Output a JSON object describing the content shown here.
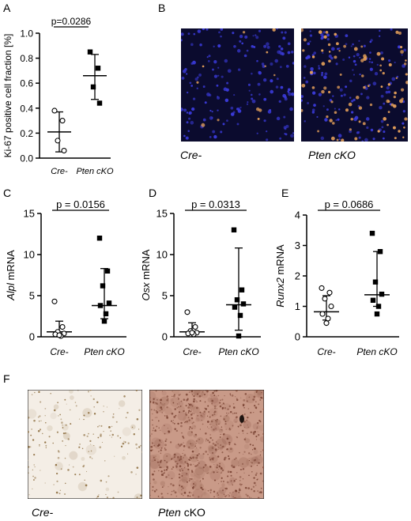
{
  "panels": {
    "A": "A",
    "B": "B",
    "C": "C",
    "D": "D",
    "E": "E",
    "F": "F"
  },
  "micrograph_labels": {
    "b_left": "Cre-",
    "b_right": "Pten cKO",
    "f_left": "Cre-",
    "f_right_italic": "Pten",
    "f_right_plain": " cKO"
  },
  "colors": {
    "fluorescence_bg": "#0b0b2e",
    "nuclei": "#3a3ad8",
    "ki67": "#e8a25a",
    "ihc_cre_bg": "#f4eee6",
    "ihc_pten_bg": "#c99a88"
  },
  "chart_data": [
    {
      "id": "A",
      "type": "scatter",
      "categories": [
        "Cre-",
        "Pten cKO"
      ],
      "ylabel": "Ki-67 positive cell fraction [%]",
      "ylim": [
        0,
        1.0
      ],
      "yticks": [
        "0.0",
        "0.2",
        "0.4",
        "0.6",
        "0.8",
        "1.0"
      ],
      "pvalue": "p=0.0286",
      "groups": [
        {
          "name": "Cre-",
          "marker": "open-circle",
          "points": [
            0.38,
            0.3,
            0.14,
            0.06
          ],
          "center": 0.21,
          "range": [
            0.05,
            0.37
          ]
        },
        {
          "name": "Pten cKO",
          "marker": "filled-square",
          "points": [
            0.85,
            0.72,
            0.57,
            0.44
          ],
          "center": 0.66,
          "range": [
            0.47,
            0.83
          ]
        }
      ]
    },
    {
      "id": "C",
      "type": "scatter",
      "categories": [
        "Cre-",
        "Pten cKO"
      ],
      "ylabel_italic": "Alpl",
      "ylabel_plain": " mRNA",
      "ylim": [
        0,
        15
      ],
      "yticks": [
        "0",
        "5",
        "10",
        "15"
      ],
      "pvalue": "p = 0.0156",
      "groups": [
        {
          "name": "Cre-",
          "marker": "open-circle",
          "points": [
            4.3,
            1.2,
            0.6,
            0.4,
            0.3,
            0.1,
            0.2
          ],
          "center": 0.6,
          "range": [
            0.1,
            1.9
          ]
        },
        {
          "name": "Pten cKO",
          "marker": "filled-square",
          "points": [
            12.0,
            8.0,
            6.2,
            4.1,
            3.8,
            2.8,
            1.9
          ],
          "center": 3.8,
          "range": [
            2.2,
            8.3
          ]
        }
      ]
    },
    {
      "id": "D",
      "type": "scatter",
      "categories": [
        "Cre-",
        "Pten cKO"
      ],
      "ylabel_italic": "Osx",
      "ylabel_plain": " mRNA",
      "ylim": [
        0,
        15
      ],
      "yticks": [
        "0",
        "5",
        "10",
        "15"
      ],
      "pvalue": "p = 0.0313",
      "groups": [
        {
          "name": "Cre-",
          "marker": "open-circle",
          "points": [
            3.0,
            1.2,
            0.7,
            0.5,
            0.4,
            0.3,
            0.5
          ],
          "center": 0.6,
          "range": [
            0.3,
            1.7
          ]
        },
        {
          "name": "Pten cKO",
          "marker": "filled-square",
          "points": [
            13.0,
            5.7,
            4.5,
            4.0,
            3.6,
            2.6,
            0.1
          ],
          "center": 3.9,
          "range": [
            0.8,
            10.8
          ]
        }
      ]
    },
    {
      "id": "E",
      "type": "scatter",
      "categories": [
        "Cre-",
        "Pten cKO"
      ],
      "ylabel_italic": "Runx2",
      "ylabel_plain": " mRNA",
      "ylim": [
        0,
        4
      ],
      "yticks": [
        "0",
        "1",
        "2",
        "3",
        "4"
      ],
      "pvalue": "p = 0.0686",
      "groups": [
        {
          "name": "Cre-",
          "marker": "open-circle",
          "points": [
            1.6,
            1.45,
            1.25,
            1.0,
            0.75,
            0.6,
            0.45
          ],
          "center": 0.82,
          "range": [
            0.55,
            1.35
          ]
        },
        {
          "name": "Pten cKO",
          "marker": "filled-square",
          "points": [
            3.4,
            2.8,
            1.8,
            1.4,
            1.2,
            1.0,
            0.75
          ],
          "center": 1.38,
          "range": [
            1.0,
            2.8
          ]
        }
      ]
    }
  ]
}
